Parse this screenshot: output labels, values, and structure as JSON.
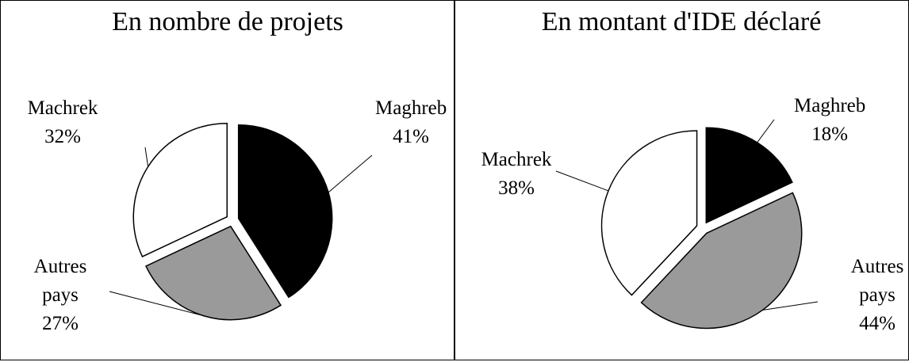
{
  "chart_data": [
    {
      "type": "pie",
      "title": "En nombre de projets",
      "categories": [
        "Maghreb",
        "Autres pays",
        "Machrek"
      ],
      "values": [
        41,
        27,
        32
      ],
      "value_labels": [
        "41%",
        "27%",
        "32%"
      ],
      "colors": [
        "#000000",
        "#9a9a9a",
        "#ffffff"
      ]
    },
    {
      "type": "pie",
      "title": "En montant d'IDE déclaré",
      "categories": [
        "Maghreb",
        "Autres pays",
        "Machrek"
      ],
      "values": [
        18,
        44,
        38
      ],
      "value_labels": [
        "18%",
        "44%",
        "38%"
      ],
      "colors": [
        "#000000",
        "#9a9a9a",
        "#ffffff"
      ]
    }
  ]
}
